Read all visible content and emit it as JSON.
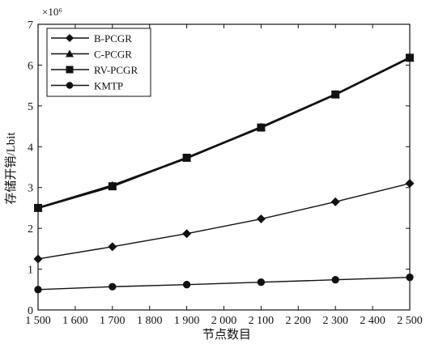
{
  "chart_data": {
    "type": "line",
    "xlabel": "节点数目",
    "ylabel": "存储开销/Lbit",
    "y_multiplier": "×10⁶",
    "xlim": [
      1500,
      2500
    ],
    "ylim": [
      0,
      7
    ],
    "grid": false,
    "legend_position": "top-left",
    "x_ticks": [
      1500,
      1600,
      1700,
      1800,
      1900,
      2000,
      2100,
      2200,
      2300,
      2400,
      2500
    ],
    "x_tick_labels": [
      "1 500",
      "1 600",
      "1 700",
      "1 800",
      "1 900",
      "2 000",
      "2 100",
      "2 200",
      "2 300",
      "2 400",
      "2 500"
    ],
    "y_ticks": [
      0,
      1,
      2,
      3,
      4,
      5,
      6,
      7
    ],
    "y_tick_labels": [
      "0",
      "1",
      "2",
      "3",
      "4",
      "5",
      "6",
      "7"
    ],
    "x": [
      1500,
      1700,
      1900,
      2100,
      2300,
      2500
    ],
    "series": [
      {
        "name": "B-PCGR",
        "marker": "diamond",
        "values": [
          1.25,
          1.55,
          1.87,
          2.23,
          2.65,
          3.1
        ]
      },
      {
        "name": "C-PCGR",
        "marker": "triangle",
        "values": [
          2.5,
          3.05,
          3.72,
          4.48,
          5.28,
          6.18
        ]
      },
      {
        "name": "RV-PCGR",
        "marker": "square",
        "values": [
          2.5,
          3.03,
          3.73,
          4.47,
          5.28,
          6.18
        ]
      },
      {
        "name": "KMTP",
        "marker": "circle",
        "values": [
          0.5,
          0.57,
          0.62,
          0.68,
          0.74,
          0.8
        ]
      }
    ],
    "line_color": "#111111"
  }
}
